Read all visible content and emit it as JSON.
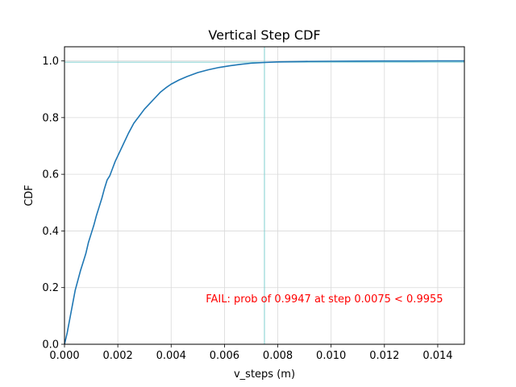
{
  "chart_data": {
    "type": "line",
    "title": "Vertical Step CDF",
    "xlabel": "v_steps (m)",
    "ylabel": "CDF",
    "xlim": [
      0.0,
      0.015
    ],
    "ylim": [
      0.0,
      1.05
    ],
    "grid": true,
    "x_ticks": [
      0.0,
      0.002,
      0.004,
      0.006,
      0.008,
      0.01,
      0.012,
      0.014
    ],
    "x_tick_labels": [
      "0.000",
      "0.002",
      "0.004",
      "0.006",
      "0.008",
      "0.010",
      "0.012",
      "0.014"
    ],
    "y_ticks": [
      0.0,
      0.2,
      0.4,
      0.6,
      0.8,
      1.0
    ],
    "y_tick_labels": [
      "0.0",
      "0.2",
      "0.4",
      "0.6",
      "0.8",
      "1.0"
    ],
    "series": [
      {
        "color": "#1f77b4",
        "x": [
          0.0,
          0.0001,
          0.0002,
          0.0003,
          0.0004,
          0.0005,
          0.0006,
          0.0007,
          0.0008,
          0.0009,
          0.001,
          0.0011,
          0.0012,
          0.0013,
          0.0014,
          0.0015,
          0.0016,
          0.0017,
          0.0018,
          0.0019,
          0.002,
          0.0022,
          0.0024,
          0.0026,
          0.0028,
          0.003,
          0.0032,
          0.0034,
          0.0036,
          0.0038,
          0.004,
          0.0043,
          0.0046,
          0.005,
          0.0054,
          0.0058,
          0.0062,
          0.0066,
          0.007,
          0.0075,
          0.008,
          0.009,
          0.01,
          0.011,
          0.012,
          0.013,
          0.014,
          0.015
        ],
        "y": [
          0.0,
          0.04,
          0.09,
          0.14,
          0.19,
          0.225,
          0.26,
          0.29,
          0.32,
          0.36,
          0.39,
          0.42,
          0.455,
          0.485,
          0.515,
          0.55,
          0.58,
          0.595,
          0.62,
          0.645,
          0.665,
          0.705,
          0.745,
          0.78,
          0.805,
          0.83,
          0.85,
          0.87,
          0.89,
          0.905,
          0.918,
          0.933,
          0.945,
          0.959,
          0.969,
          0.977,
          0.983,
          0.988,
          0.992,
          0.9947,
          0.9965,
          0.998,
          0.9988,
          0.9993,
          0.9996,
          0.9998,
          0.9999,
          1.0
        ]
      }
    ],
    "reference_lines": {
      "color": "#7fcfcf",
      "vertical_x": 0.0075,
      "horizontal_y": 0.9955
    },
    "annotation": {
      "text": "FAIL: prob of 0.9947 at step 0.0075 < 0.9955",
      "color": "#ff0000",
      "x": 0.0142,
      "y": 0.16
    }
  }
}
